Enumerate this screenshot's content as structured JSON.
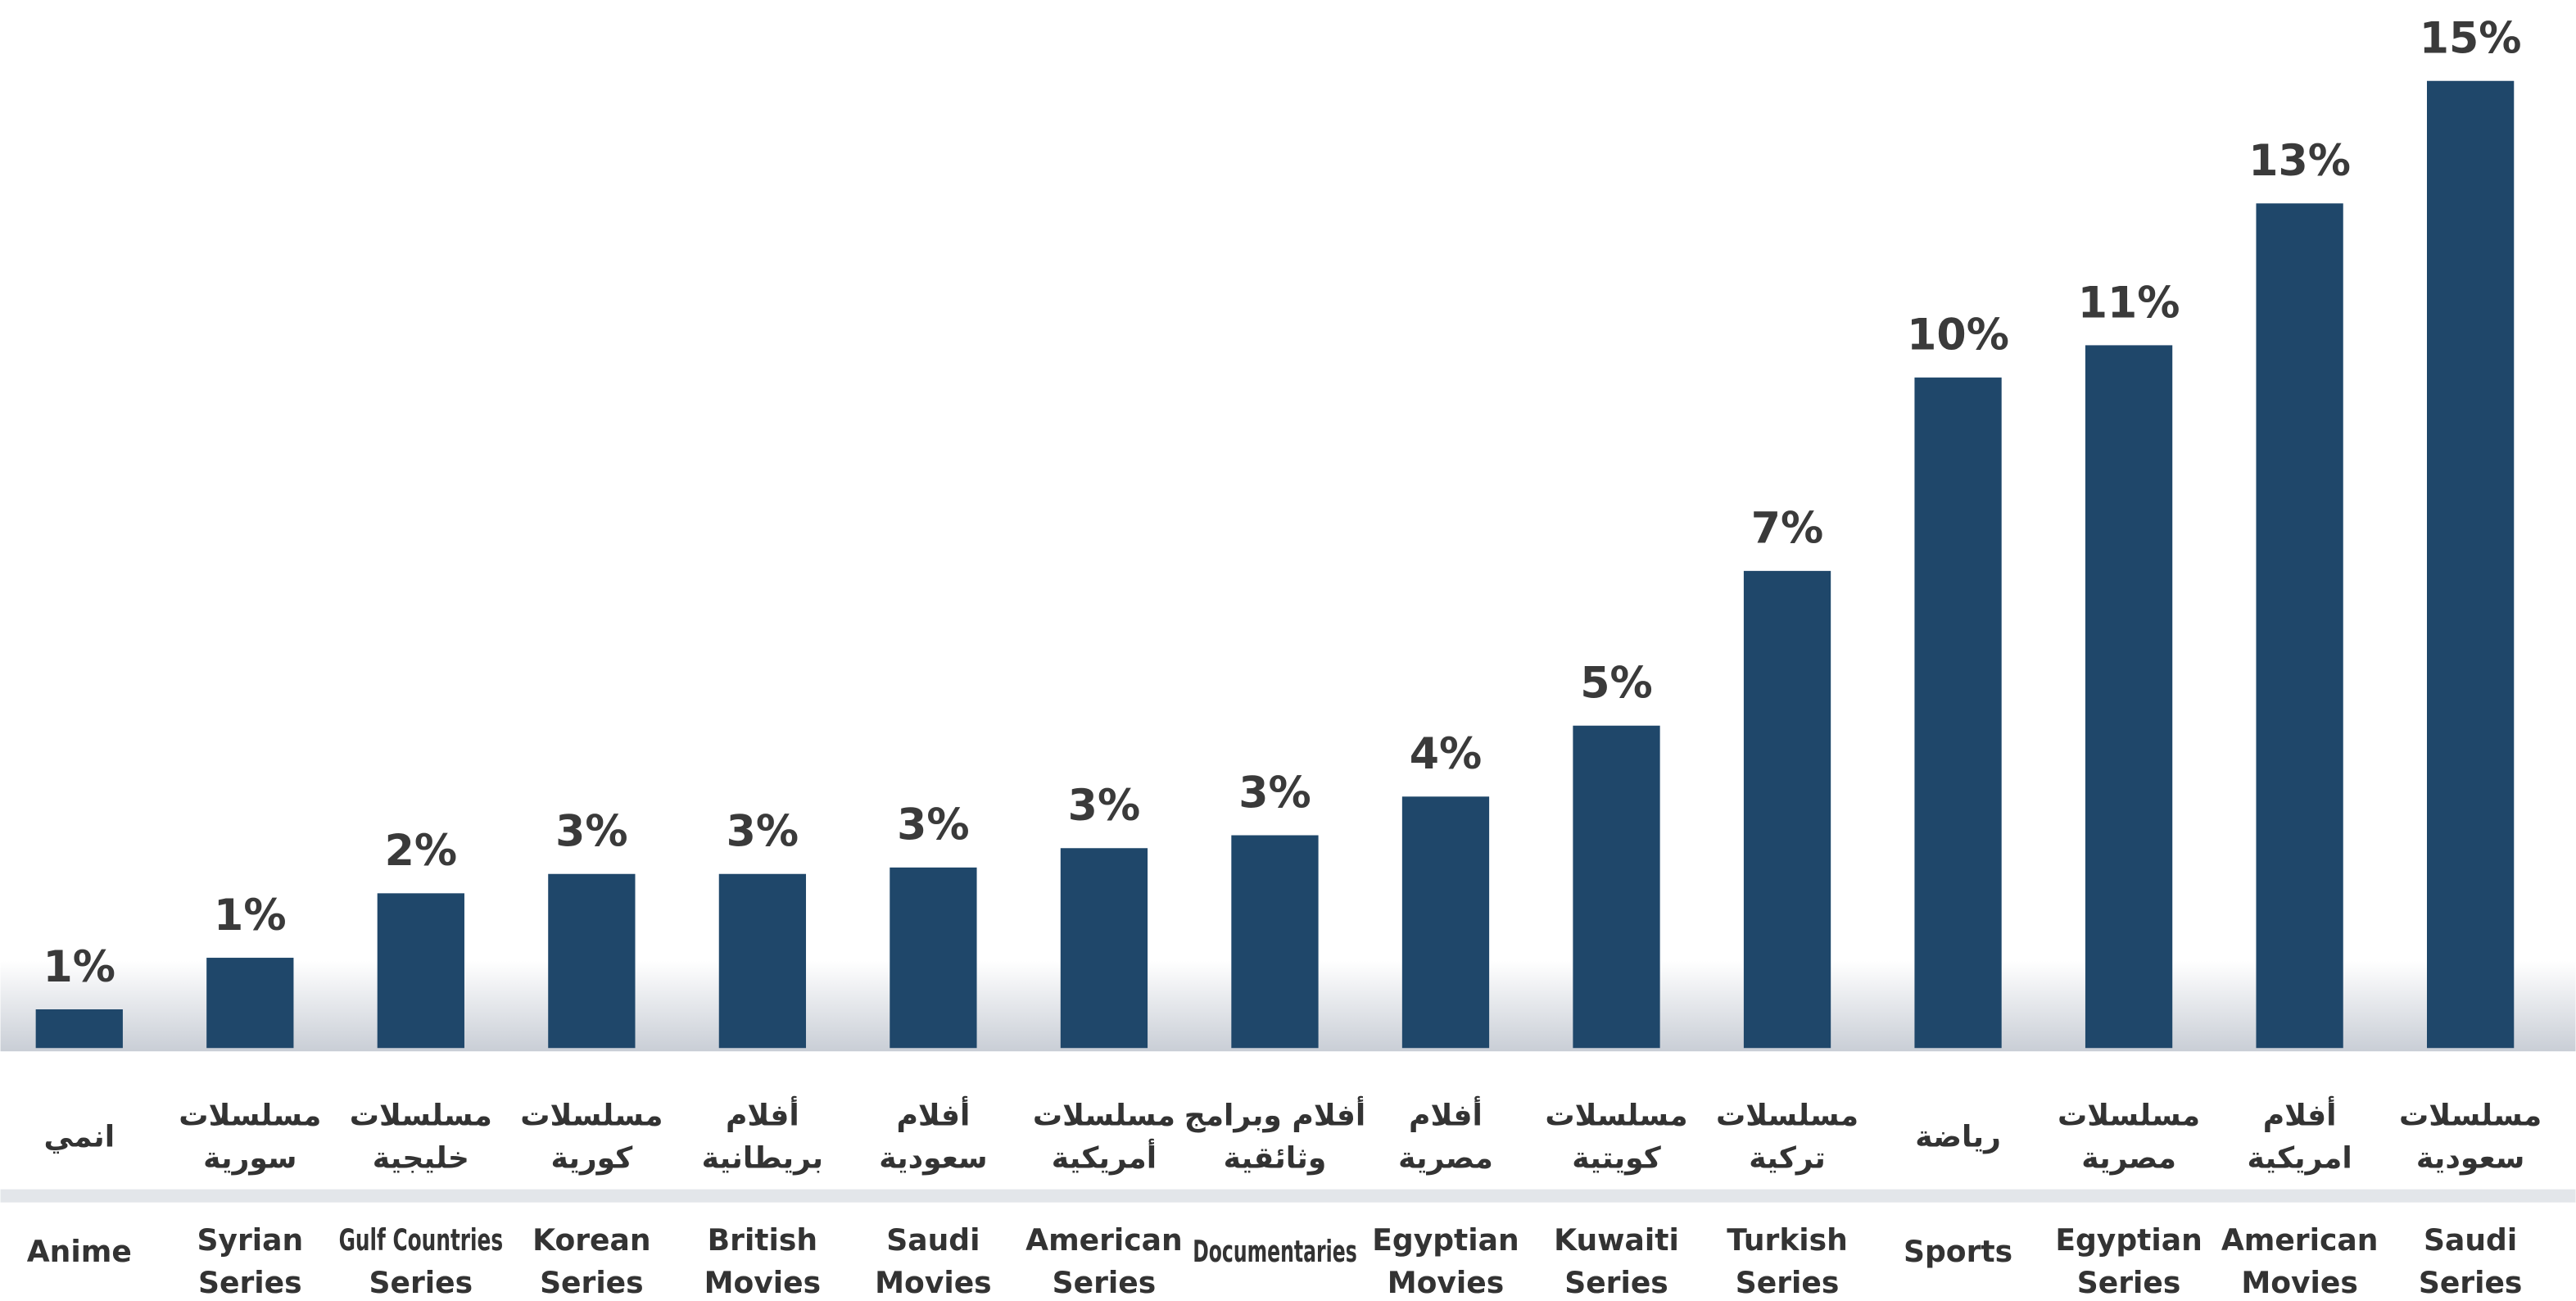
{
  "chart_data": {
    "type": "bar",
    "categories": [
      [
        "Anime"
      ],
      [
        "Syrian",
        "Series"
      ],
      [
        "Gulf Countries",
        "Series"
      ],
      [
        "Korean",
        "Series"
      ],
      [
        "British",
        "Movies"
      ],
      [
        "Saudi",
        "Movies"
      ],
      [
        "American",
        "Series"
      ],
      [
        "Documentaries"
      ],
      [
        "Egyptian",
        "Movies"
      ],
      [
        "Kuwaiti",
        "Series"
      ],
      [
        "Turkish",
        "Series"
      ],
      [
        "Sports"
      ],
      [
        "Egyptian",
        "Series"
      ],
      [
        "American",
        "Movies"
      ],
      [
        "Saudi",
        "Series"
      ]
    ],
    "categories_ar": [
      [
        "انمي"
      ],
      [
        "مسلسلات",
        "سورية"
      ],
      [
        "مسلسلات",
        "خليجية"
      ],
      [
        "مسلسلات",
        "كورية"
      ],
      [
        "أفلام",
        "بريطانية"
      ],
      [
        "أفلام",
        "سعودية"
      ],
      [
        "مسلسلات",
        "أمريكية"
      ],
      [
        "أفلام وبرامج",
        "وثائقية"
      ],
      [
        "أفلام",
        "مصرية"
      ],
      [
        "مسلسلات",
        "كويتية"
      ],
      [
        "مسلسلات",
        "تركية"
      ],
      [
        "رياضة"
      ],
      [
        "مسلسلات",
        "مصرية"
      ],
      [
        "أفلام",
        "امريكية"
      ],
      [
        "مسلسلات",
        "سعودية"
      ]
    ],
    "values": [
      0.6,
      1.4,
      2.4,
      2.7,
      2.7,
      2.8,
      3.1,
      3.3,
      3.9,
      5.0,
      7.4,
      10.4,
      10.9,
      13.1,
      15.0
    ],
    "value_labels": [
      "1%",
      "1%",
      "2%",
      "3%",
      "3%",
      "3%",
      "3%",
      "3%",
      "4%",
      "5%",
      "7%",
      "10%",
      "11%",
      "13%",
      "15%"
    ],
    "color": "#1f476a",
    "ylim": [
      0,
      16
    ]
  }
}
